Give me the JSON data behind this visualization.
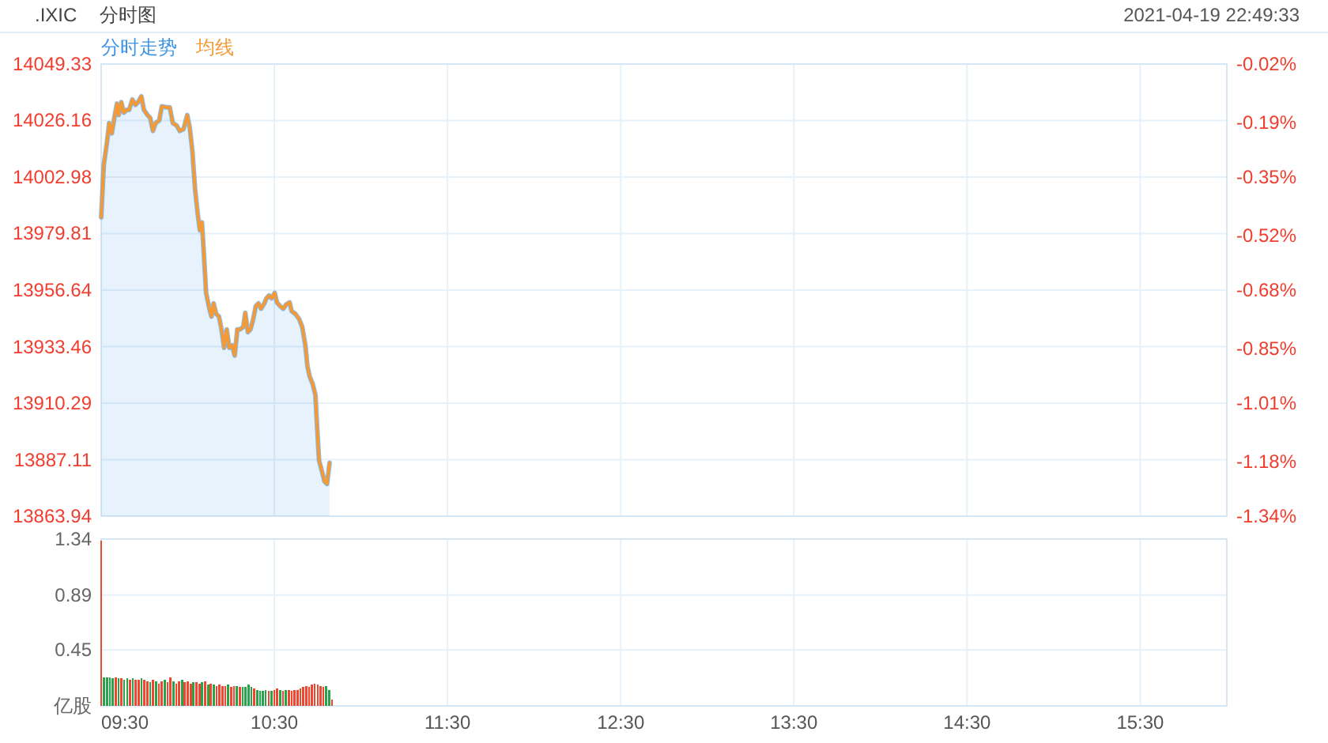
{
  "chart_data": [
    {
      "type": "line",
      "title": ".IXIC",
      "subtitle": "分时图",
      "annotations": [
        "2021-04-19 22:49:33"
      ],
      "x": [
        9.5,
        9.515,
        9.534,
        9.546,
        9.561,
        9.576,
        9.591,
        9.601,
        9.616,
        9.631,
        9.646,
        9.661,
        9.68,
        9.698,
        9.713,
        9.732,
        9.747,
        9.768,
        9.783,
        9.799,
        9.814,
        9.835,
        9.85,
        9.875,
        9.896,
        9.914,
        9.936,
        9.954,
        9.975,
        9.997,
        10.012,
        10.027,
        10.042,
        10.058,
        10.07,
        10.082,
        10.094,
        10.106,
        10.125,
        10.137,
        10.149,
        10.164,
        10.18,
        10.195,
        10.21,
        10.225,
        10.24,
        10.256,
        10.271,
        10.286,
        10.301,
        10.32,
        10.332,
        10.347,
        10.362,
        10.378,
        10.393,
        10.408,
        10.423,
        10.442,
        10.454,
        10.469,
        10.484,
        10.502,
        10.515,
        10.533,
        10.551,
        10.569,
        10.588,
        10.6,
        10.621,
        10.643,
        10.661,
        10.679,
        10.691,
        10.704,
        10.722,
        10.737,
        10.746,
        10.758,
        10.774,
        10.789,
        10.804,
        10.819
      ],
      "series": [
        {
          "name": "分时走势",
          "type": "area",
          "color": "#3d93e6",
          "values": [
            13986.5,
            14008.0,
            14017.6,
            14025.1,
            14020.9,
            14027.3,
            14033.1,
            14028.4,
            14033.7,
            14029.4,
            14030.5,
            14030.5,
            14034.8,
            14032.6,
            14033.7,
            14036.1,
            14030.5,
            14028.4,
            14027.3,
            14021.9,
            14025.1,
            14026.2,
            14032.0,
            14031.6,
            14031.6,
            14025.1,
            14024.1,
            14021.9,
            14022.6,
            14028.4,
            14023.0,
            14013.3,
            13998.3,
            13987.6,
            13981.2,
            13984.4,
            13970.5,
            13955.5,
            13949.0,
            13945.8,
            13951.2,
            13946.9,
            13945.8,
            13940.5,
            13933.0,
            13940.5,
            13933.0,
            13934.0,
            13929.8,
            13940.5,
            13940.5,
            13941.5,
            13947.3,
            13939.4,
            13940.5,
            13944.8,
            13950.1,
            13951.2,
            13949.0,
            13951.2,
            13953.3,
            13954.4,
            13953.3,
            13955.5,
            13951.6,
            13950.1,
            13949.0,
            13950.8,
            13951.6,
            13948.0,
            13946.9,
            13944.8,
            13941.5,
            13934.0,
            13925.5,
            13921.2,
            13918.0,
            13913.7,
            13901.9,
            13886.9,
            13882.6,
            13878.3,
            13877.2,
            13885.8
          ]
        },
        {
          "name": "均线",
          "color": "#f39a36",
          "values": [
            13986.5,
            14008.0,
            14017.6,
            14025.1,
            14020.9,
            14027.3,
            14033.1,
            14028.4,
            14033.7,
            14029.4,
            14030.5,
            14030.5,
            14034.8,
            14032.6,
            14033.7,
            14036.1,
            14030.5,
            14028.4,
            14027.3,
            14021.9,
            14025.1,
            14026.2,
            14032.0,
            14031.6,
            14031.6,
            14025.1,
            14024.1,
            14021.9,
            14022.6,
            14028.4,
            14023.0,
            14013.3,
            13998.3,
            13987.6,
            13981.2,
            13984.4,
            13970.5,
            13955.5,
            13949.0,
            13945.8,
            13951.2,
            13946.9,
            13945.8,
            13940.5,
            13933.0,
            13940.5,
            13933.0,
            13934.0,
            13929.8,
            13940.5,
            13940.5,
            13941.5,
            13947.3,
            13939.4,
            13940.5,
            13944.8,
            13950.1,
            13951.2,
            13949.0,
            13951.2,
            13953.3,
            13954.4,
            13953.3,
            13955.5,
            13951.6,
            13950.1,
            13949.0,
            13950.8,
            13951.6,
            13948.0,
            13946.9,
            13944.8,
            13941.5,
            13934.0,
            13925.5,
            13921.2,
            13918.0,
            13913.7,
            13901.9,
            13886.9,
            13882.6,
            13878.3,
            13877.2,
            13885.8
          ]
        }
      ],
      "xlim": [
        9.5,
        16
      ],
      "xticks": [
        {
          "value": 9.5,
          "label": null
        },
        {
          "value": 10.5,
          "label": null
        },
        {
          "value": 11.5,
          "label": null
        },
        {
          "value": 12.5,
          "label": null
        },
        {
          "value": 13.5,
          "label": null
        },
        {
          "value": 14.5,
          "label": null
        },
        {
          "value": 15.5,
          "label": null
        }
      ],
      "ylim": [
        13863.94,
        14049.33
      ],
      "yticks": [
        13863.94,
        13887.11,
        13910.29,
        13933.46,
        13956.64,
        13979.81,
        14002.98,
        14026.16,
        14049.33
      ],
      "y2lim": [
        -1.34,
        -0.02
      ],
      "y2ticks": [
        {
          "value": -1.34,
          "label": "-1.34%"
        },
        {
          "value": -1.18,
          "label": "-1.18%"
        },
        {
          "value": -1.01,
          "label": "-1.01%"
        },
        {
          "value": -0.85,
          "label": "-0.85%"
        },
        {
          "value": -0.68,
          "label": "-0.68%"
        },
        {
          "value": -0.52,
          "label": "-0.52%"
        },
        {
          "value": -0.35,
          "label": "-0.35%"
        },
        {
          "value": -0.19,
          "label": "-0.19%"
        },
        {
          "value": -0.02,
          "label": "-0.02%"
        }
      ],
      "grid": true,
      "legend": "top left",
      "tick_labels": "y"
    },
    {
      "type": "bar",
      "x": [
        9.5,
        9.517,
        9.533,
        9.55,
        9.567,
        9.583,
        9.6,
        9.617,
        9.633,
        9.65,
        9.667,
        9.683,
        9.7,
        9.717,
        9.733,
        9.75,
        9.767,
        9.783,
        9.8,
        9.817,
        9.833,
        9.85,
        9.867,
        9.883,
        9.9,
        9.917,
        9.933,
        9.95,
        9.967,
        9.983,
        10.0,
        10.017,
        10.033,
        10.05,
        10.067,
        10.083,
        10.1,
        10.117,
        10.133,
        10.15,
        10.167,
        10.183,
        10.2,
        10.217,
        10.233,
        10.25,
        10.267,
        10.283,
        10.3,
        10.317,
        10.333,
        10.35,
        10.367,
        10.383,
        10.4,
        10.417,
        10.433,
        10.45,
        10.467,
        10.483,
        10.5,
        10.517,
        10.533,
        10.55,
        10.567,
        10.583,
        10.6,
        10.617,
        10.633,
        10.65,
        10.667,
        10.683,
        10.7,
        10.717,
        10.733,
        10.75,
        10.767,
        10.783,
        10.8,
        10.817,
        10.833
      ],
      "values": [
        1.33,
        0.23,
        0.23,
        0.23,
        0.22,
        0.23,
        0.22,
        0.22,
        0.21,
        0.22,
        0.21,
        0.22,
        0.21,
        0.21,
        0.22,
        0.21,
        0.2,
        0.19,
        0.21,
        0.2,
        0.18,
        0.2,
        0.21,
        0.19,
        0.23,
        0.2,
        0.18,
        0.2,
        0.21,
        0.19,
        0.2,
        0.18,
        0.19,
        0.19,
        0.18,
        0.19,
        0.2,
        0.17,
        0.18,
        0.17,
        0.16,
        0.17,
        0.16,
        0.16,
        0.17,
        0.15,
        0.16,
        0.16,
        0.15,
        0.15,
        0.15,
        0.17,
        0.15,
        0.14,
        0.13,
        0.12,
        0.12,
        0.13,
        0.12,
        0.12,
        0.13,
        0.14,
        0.13,
        0.12,
        0.13,
        0.13,
        0.12,
        0.13,
        0.13,
        0.14,
        0.15,
        0.16,
        0.15,
        0.17,
        0.18,
        0.17,
        0.16,
        0.15,
        0.16,
        0.13,
        0.05
      ],
      "colors": [
        "#f0452f",
        "#27a34b",
        "#27a34b",
        "#27a34b",
        "#27a34b",
        "#f0452f",
        "#27a34b",
        "#f0452f",
        "#27a34b",
        "#27a34b",
        "#f0452f",
        "#27a34b",
        "#f0452f",
        "#f0452f",
        "#27a34b",
        "#f0452f",
        "#f0452f",
        "#27a34b",
        "#f0452f",
        "#27a34b",
        "#f0452f",
        "#f0452f",
        "#27a34b",
        "#f0452f",
        "#f0452f",
        "#27a34b",
        "#f0452f",
        "#f0452f",
        "#27a34b",
        "#f0452f",
        "#f0452f",
        "#f0452f",
        "#27a34b",
        "#f0452f",
        "#f0452f",
        "#27a34b",
        "#f0452f",
        "#27a34b",
        "#f0452f",
        "#27a34b",
        "#f0452f",
        "#f0452f",
        "#f0452f",
        "#f0452f",
        "#27a34b",
        "#f0452f",
        "#f0452f",
        "#27a34b",
        "#f0452f",
        "#27a34b",
        "#27a34b",
        "#27a34b",
        "#27a34b",
        "#f0452f",
        "#27a34b",
        "#27a34b",
        "#27a34b",
        "#27a34b",
        "#f0452f",
        "#27a34b",
        "#f0452f",
        "#f0452f",
        "#27a34b",
        "#f0452f",
        "#27a34b",
        "#f0452f",
        "#f0452f",
        "#f0452f",
        "#f0452f",
        "#f0452f",
        "#f0452f",
        "#f0452f",
        "#f0452f",
        "#f0452f",
        "#f0452f",
        "#f0452f",
        "#f0452f",
        "#f0452f",
        "#27a34b",
        "#27a34b",
        "#f0452f"
      ],
      "xlim": [
        9.5,
        16
      ],
      "xticks": [
        {
          "value": 9.5,
          "label": "09:30"
        },
        {
          "value": 10.5,
          "label": "10:30"
        },
        {
          "value": 11.5,
          "label": "11:30"
        },
        {
          "value": 12.5,
          "label": "12:30"
        },
        {
          "value": 13.5,
          "label": "13:30"
        },
        {
          "value": 14.5,
          "label": "14:30"
        },
        {
          "value": 15.5,
          "label": "15:30"
        }
      ],
      "ylim": [
        0,
        1.34
      ],
      "yticks": [
        {
          "value": 0,
          "label": "亿股"
        },
        0.45,
        0.89,
        1.34
      ],
      "grid": true
    }
  ]
}
